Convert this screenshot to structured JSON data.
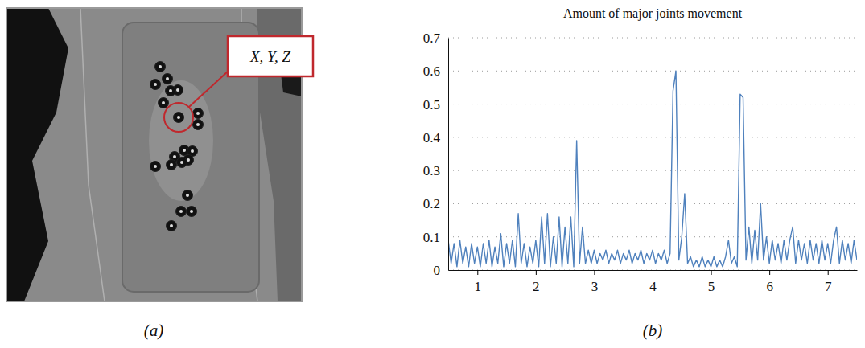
{
  "image_panel": {
    "callout_label": "X, Y, Z",
    "panel_label": "(a)"
  },
  "chart_data": {
    "type": "line",
    "title": "Amount of major joints movement",
    "panel_label": "(b)",
    "color": "#4f81bd",
    "grid": true,
    "xlim": [
      0.5,
      7.5
    ],
    "xticks": [
      1,
      2,
      3,
      4,
      5,
      6,
      7
    ],
    "ylim": [
      0,
      0.7
    ],
    "yticks": [
      0,
      0.1,
      0.2,
      0.3,
      0.4,
      0.5,
      0.6,
      0.7
    ],
    "x": [
      0.5,
      0.55,
      0.6,
      0.65,
      0.7,
      0.75,
      0.8,
      0.85,
      0.9,
      0.95,
      1.0,
      1.05,
      1.1,
      1.15,
      1.2,
      1.25,
      1.3,
      1.35,
      1.4,
      1.45,
      1.5,
      1.55,
      1.6,
      1.65,
      1.7,
      1.75,
      1.8,
      1.85,
      1.9,
      1.95,
      2.0,
      2.05,
      2.1,
      2.15,
      2.2,
      2.25,
      2.3,
      2.35,
      2.4,
      2.45,
      2.5,
      2.55,
      2.6,
      2.65,
      2.7,
      2.75,
      2.8,
      2.85,
      2.9,
      2.95,
      3.0,
      3.05,
      3.1,
      3.15,
      3.2,
      3.25,
      3.3,
      3.35,
      3.4,
      3.45,
      3.5,
      3.55,
      3.6,
      3.65,
      3.7,
      3.75,
      3.8,
      3.85,
      3.9,
      3.95,
      4.0,
      4.05,
      4.1,
      4.15,
      4.2,
      4.25,
      4.3,
      4.35,
      4.4,
      4.45,
      4.5,
      4.55,
      4.6,
      4.65,
      4.7,
      4.75,
      4.8,
      4.85,
      4.9,
      4.95,
      5.0,
      5.05,
      5.1,
      5.15,
      5.2,
      5.25,
      5.3,
      5.35,
      5.4,
      5.45,
      5.5,
      5.55,
      5.6,
      5.65,
      5.7,
      5.75,
      5.8,
      5.85,
      5.9,
      5.95,
      6.0,
      6.05,
      6.1,
      6.15,
      6.2,
      6.25,
      6.3,
      6.35,
      6.4,
      6.45,
      6.5,
      6.55,
      6.6,
      6.65,
      6.7,
      6.75,
      6.8,
      6.85,
      6.9,
      6.95,
      7.0,
      7.05,
      7.1,
      7.15,
      7.2,
      7.25,
      7.3,
      7.35,
      7.4,
      7.45,
      7.5
    ],
    "values": [
      0.09,
      0.02,
      0.08,
      0.01,
      0.09,
      0.02,
      0.07,
      0.01,
      0.08,
      0.02,
      0.07,
      0.01,
      0.08,
      0.02,
      0.09,
      0.01,
      0.07,
      0.02,
      0.11,
      0.01,
      0.08,
      0.02,
      0.09,
      0.01,
      0.17,
      0.02,
      0.08,
      0.01,
      0.07,
      0.02,
      0.09,
      0.01,
      0.16,
      0.02,
      0.17,
      0.01,
      0.1,
      0.02,
      0.16,
      0.01,
      0.13,
      0.02,
      0.16,
      0.01,
      0.39,
      0.02,
      0.13,
      0.02,
      0.06,
      0.02,
      0.06,
      0.02,
      0.05,
      0.03,
      0.06,
      0.02,
      0.05,
      0.03,
      0.06,
      0.02,
      0.05,
      0.03,
      0.06,
      0.02,
      0.05,
      0.03,
      0.06,
      0.02,
      0.05,
      0.03,
      0.06,
      0.02,
      0.05,
      0.03,
      0.06,
      0.02,
      0.05,
      0.54,
      0.6,
      0.03,
      0.1,
      0.23,
      0.02,
      0.04,
      0.01,
      0.03,
      0.01,
      0.04,
      0.01,
      0.03,
      0.01,
      0.04,
      0.01,
      0.03,
      0.01,
      0.04,
      0.09,
      0.02,
      0.04,
      0.01,
      0.53,
      0.52,
      0.03,
      0.13,
      0.02,
      0.12,
      0.03,
      0.2,
      0.03,
      0.1,
      0.02,
      0.09,
      0.03,
      0.08,
      0.02,
      0.09,
      0.03,
      0.09,
      0.13,
      0.02,
      0.09,
      0.03,
      0.08,
      0.02,
      0.09,
      0.03,
      0.08,
      0.02,
      0.09,
      0.03,
      0.08,
      0.02,
      0.09,
      0.13,
      0.02,
      0.09,
      0.03,
      0.08,
      0.02,
      0.09,
      0.03
    ]
  }
}
